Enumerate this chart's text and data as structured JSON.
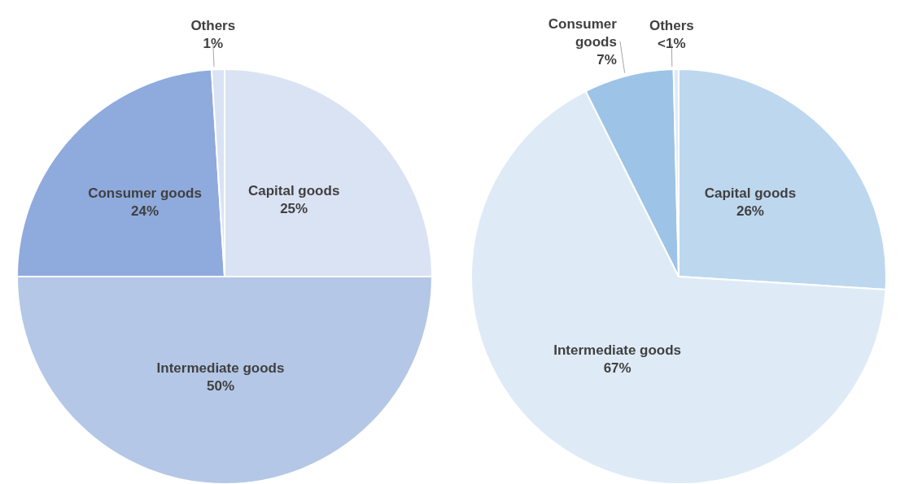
{
  "chart_data": [
    {
      "type": "pie",
      "categories": [
        "Capital goods",
        "Intermediate goods",
        "Consumer goods",
        "Others"
      ],
      "values": [
        25,
        50,
        24,
        1
      ],
      "colors": [
        "#dae3f3",
        "#b4c7e7",
        "#8faadc",
        "#dae3f3"
      ],
      "value_labels": [
        "25%",
        "50%",
        "24%",
        "1%"
      ]
    },
    {
      "type": "pie",
      "categories": [
        "Capital goods",
        "Intermediate goods",
        "Consumer goods",
        "Others"
      ],
      "values": [
        26,
        66.6,
        7,
        0.4
      ],
      "colors": [
        "#bdd7ee",
        "#deebf7",
        "#9dc3e6",
        "#deebf7"
      ],
      "value_labels": [
        "26%",
        "67%",
        "7%",
        "<1%"
      ]
    }
  ]
}
